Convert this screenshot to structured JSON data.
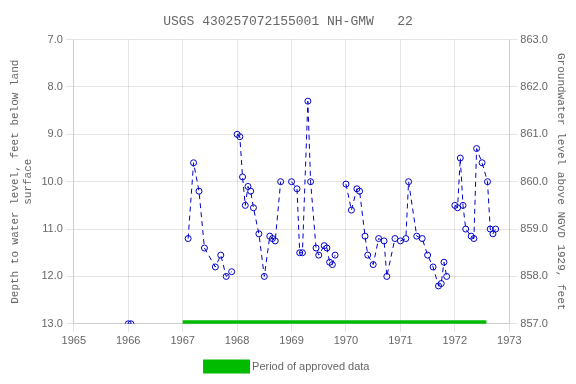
{
  "chart_data": {
    "type": "line",
    "title": "USGS 430257072155001 NH-GMW   22",
    "ylabel": "Depth to water level, feet below land\nsurface",
    "y2label": "Groundwater level above NGVD 1929, feet",
    "xlim": [
      1965,
      1973
    ],
    "xticks": [
      1965,
      1966,
      1967,
      1968,
      1969,
      1970,
      1971,
      1972,
      1973
    ],
    "ylim": [
      13.0,
      7.0
    ],
    "yticks": [
      {
        "value": 7.0,
        "label": "7.0"
      },
      {
        "value": 8.0,
        "label": "8.0"
      },
      {
        "value": 9.0,
        "label": "9.0"
      },
      {
        "value": 10.0,
        "label": "10.0"
      },
      {
        "value": 11.0,
        "label": "11.0"
      },
      {
        "value": 12.0,
        "label": "12.0"
      },
      {
        "value": 13.0,
        "label": "13.0"
      }
    ],
    "y2lim": [
      857.0,
      863.0
    ],
    "y2ticks": [
      {
        "value": 857.0,
        "label": "857.0"
      },
      {
        "value": 858.0,
        "label": "858.0"
      },
      {
        "value": 859.0,
        "label": "859.0"
      },
      {
        "value": 860.0,
        "label": "860.0"
      },
      {
        "value": 861.0,
        "label": "861.0"
      },
      {
        "value": 862.0,
        "label": "862.0"
      },
      {
        "value": 863.0,
        "label": "863.0"
      }
    ],
    "grid": true,
    "legend": "bottom",
    "series": [
      {
        "color": "#0000cc",
        "line_style": "dashed",
        "marker": "circle",
        "x": [
          1966.0,
          1966.05
        ],
        "values": [
          13.0,
          13.0
        ]
      },
      {
        "color": "#0000cc",
        "line_style": "dashed",
        "marker": "circle",
        "x": [
          1967.1,
          1967.2,
          1967.3,
          1967.4,
          1967.6,
          1967.7,
          1967.8,
          1967.9
        ],
        "values": [
          11.2,
          9.6,
          10.2,
          11.4,
          11.8,
          11.55,
          12.0,
          11.9
        ]
      },
      {
        "color": "#0000cc",
        "line_style": "dashed",
        "marker": "circle",
        "x": [
          1968.0,
          1968.05,
          1968.1,
          1968.15,
          1968.2,
          1968.25,
          1968.3,
          1968.4,
          1968.5,
          1968.6,
          1968.65,
          1968.7,
          1968.8
        ],
        "values": [
          9.0,
          9.05,
          9.9,
          10.5,
          10.1,
          10.2,
          10.55,
          11.1,
          12.0,
          11.15,
          11.2,
          11.25,
          10.0
        ]
      },
      {
        "color": "#0000cc",
        "line_style": "dashed",
        "marker": "circle",
        "x": [
          1969.0,
          1969.1,
          1969.15,
          1969.2,
          1969.3,
          1969.35,
          1969.45,
          1969.5,
          1969.6,
          1969.65,
          1969.7,
          1969.75,
          1969.8
        ],
        "values": [
          10.0,
          10.15,
          11.5,
          11.5,
          8.3,
          10.0,
          11.4,
          11.55,
          11.35,
          11.4,
          11.7,
          11.75,
          11.55
        ]
      },
      {
        "color": "#0000cc",
        "line_style": "dashed",
        "marker": "circle",
        "x": [
          1970.0,
          1970.1,
          1970.2,
          1970.25,
          1970.35,
          1970.4,
          1970.5,
          1970.6,
          1970.7,
          1970.75,
          1970.9
        ],
        "values": [
          10.05,
          10.6,
          10.15,
          10.2,
          11.15,
          11.55,
          11.75,
          11.2,
          11.25,
          12.0,
          11.2
        ]
      },
      {
        "color": "#0000cc",
        "line_style": "dashed",
        "marker": "circle",
        "x": [
          1971.0,
          1971.1,
          1971.15,
          1971.3,
          1971.4,
          1971.5,
          1971.6,
          1971.7,
          1971.75,
          1971.8,
          1971.85
        ],
        "values": [
          11.25,
          11.2,
          10.0,
          11.15,
          11.2,
          11.55,
          11.8,
          12.2,
          12.15,
          11.7,
          12.0
        ]
      },
      {
        "color": "#0000cc",
        "line_style": "dashed",
        "marker": "circle",
        "x": [
          1972.0,
          1972.05,
          1972.1,
          1972.15,
          1972.2,
          1972.3,
          1972.35,
          1972.4,
          1972.5,
          1972.6,
          1972.65,
          1972.7,
          1972.75
        ],
        "values": [
          10.5,
          10.55,
          9.5,
          10.5,
          11.0,
          11.15,
          11.2,
          9.3,
          9.6,
          10.0,
          11.0,
          11.1,
          11.0
        ]
      },
      {
        "name": "Period of approved data",
        "color": "#00bb00",
        "line_style": "solid",
        "marker": "none",
        "x": [
          1967.0,
          1972.58
        ],
        "values": [
          13.0,
          13.0
        ]
      }
    ]
  }
}
